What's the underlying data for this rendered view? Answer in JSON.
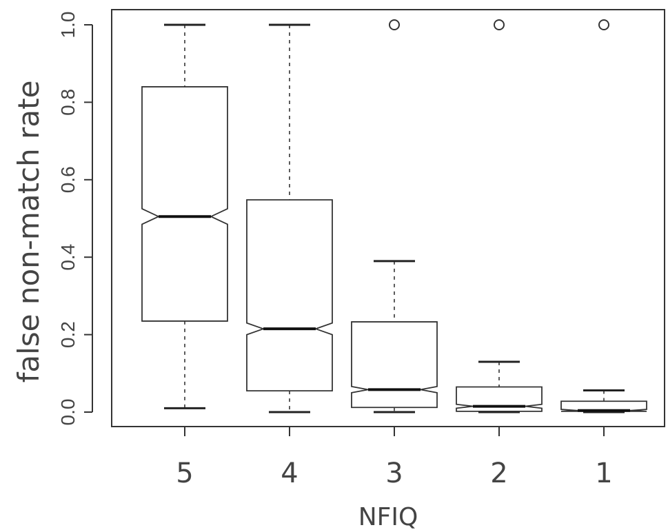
{
  "chart_data": {
    "type": "boxplot",
    "notched": true,
    "title": "",
    "xlabel": "NFIQ",
    "ylabel": "false non-match rate",
    "ylim": [
      0,
      1.0
    ],
    "yticks": [
      "0.0",
      "0.2",
      "0.4",
      "0.6",
      "0.8",
      "1.0"
    ],
    "grid": false,
    "categories": [
      "5",
      "4",
      "3",
      "2",
      "1"
    ],
    "boxes": [
      {
        "category": "5",
        "whisker_low": 0.01,
        "q1": 0.235,
        "median": 0.505,
        "q3": 0.84,
        "whisker_high": 1.0,
        "notch_low": 0.485,
        "notch_high": 0.525,
        "outliers": []
      },
      {
        "category": "4",
        "whisker_low": 0.0,
        "q1": 0.055,
        "median": 0.215,
        "q3": 0.548,
        "whisker_high": 1.0,
        "notch_low": 0.2,
        "notch_high": 0.23,
        "outliers": []
      },
      {
        "category": "3",
        "whisker_low": 0.0,
        "q1": 0.012,
        "median": 0.058,
        "q3": 0.233,
        "whisker_high": 0.39,
        "notch_low": 0.05,
        "notch_high": 0.066,
        "outliers": [
          1.0
        ]
      },
      {
        "category": "2",
        "whisker_low": 0.0,
        "q1": 0.002,
        "median": 0.015,
        "q3": 0.065,
        "whisker_high": 0.13,
        "notch_low": 0.01,
        "notch_high": 0.02,
        "outliers": [
          1.0
        ]
      },
      {
        "category": "1",
        "whisker_low": 0.0,
        "q1": 0.002,
        "median": 0.004,
        "q3": 0.028,
        "whisker_high": 0.056,
        "notch_low": 0.002,
        "notch_high": 0.007,
        "outliers": [
          1.0
        ]
      }
    ]
  }
}
